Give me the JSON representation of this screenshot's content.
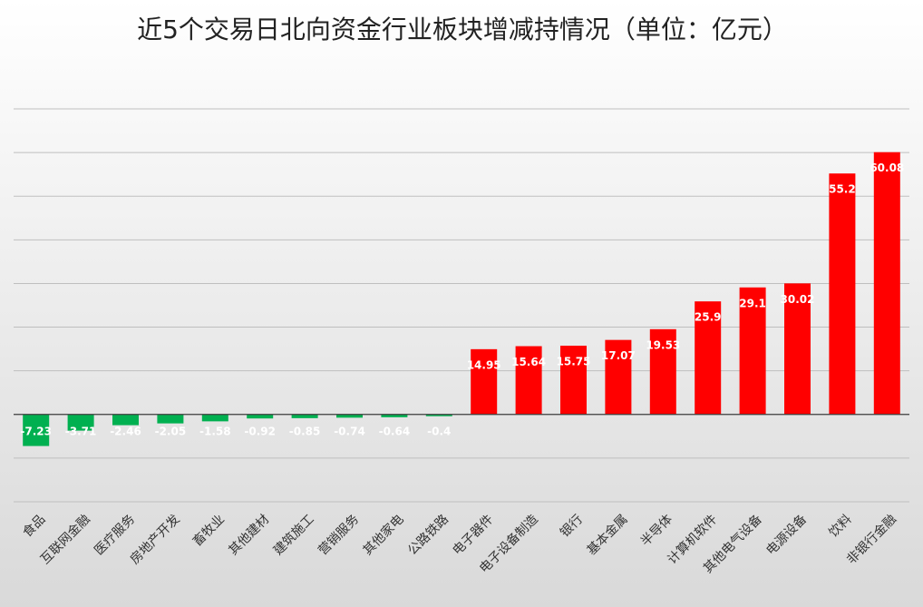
{
  "chart_data": {
    "type": "bar",
    "title": "近5个交易日北向资金行业板块增减持情况（单位：亿元）",
    "categories": [
      "食品",
      "互联网金融",
      "医疗服务",
      "房地产开发",
      "畜牧业",
      "其他建材",
      "建筑施工",
      "营销服务",
      "其他家电",
      "公路铁路",
      "电子器件",
      "电子设备制造",
      "银行",
      "基本金属",
      "半导体",
      "计算机软件",
      "其他电气设备",
      "电源设备",
      "饮料",
      "非银行金融"
    ],
    "values": [
      -7.23,
      -3.71,
      -2.46,
      -2.05,
      -1.58,
      -0.92,
      -0.85,
      -0.74,
      -0.64,
      -0.4,
      14.95,
      15.64,
      15.75,
      17.07,
      19.53,
      25.9,
      29.1,
      30.02,
      55.2,
      60.08
    ],
    "color_positive": "#ff0000",
    "color_negative": "#00b050",
    "ylim": [
      -20,
      70
    ],
    "yticks": [
      -20,
      -10,
      0,
      10,
      20,
      30,
      40,
      50,
      60,
      70
    ],
    "grid": true
  }
}
